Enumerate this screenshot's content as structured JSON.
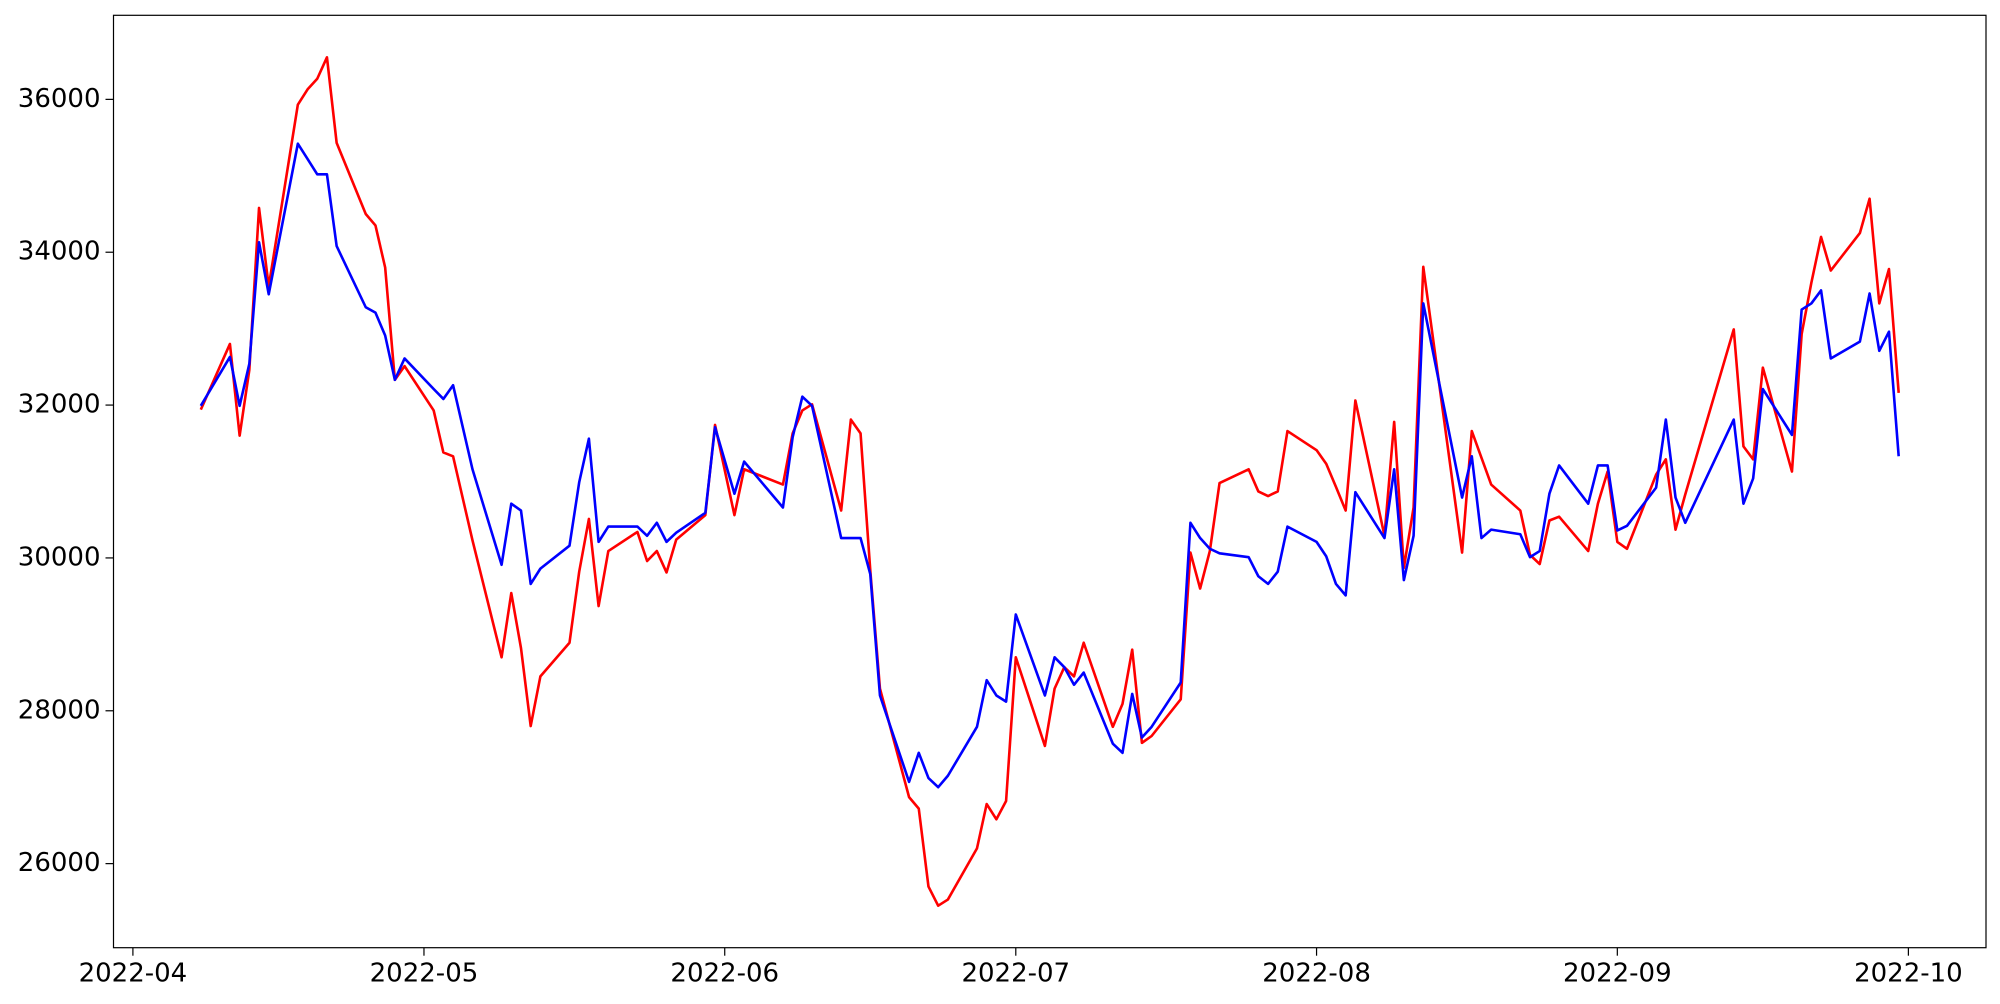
{
  "chart_data": {
    "type": "line",
    "x": [
      "2022-04-08",
      "2022-04-11",
      "2022-04-12",
      "2022-04-13",
      "2022-04-14",
      "2022-04-15",
      "2022-04-18",
      "2022-04-19",
      "2022-04-20",
      "2022-04-21",
      "2022-04-22",
      "2022-04-25",
      "2022-04-26",
      "2022-04-27",
      "2022-04-28",
      "2022-04-29",
      "2022-05-02",
      "2022-05-03",
      "2022-05-04",
      "2022-05-06",
      "2022-05-09",
      "2022-05-10",
      "2022-05-11",
      "2022-05-12",
      "2022-05-13",
      "2022-05-16",
      "2022-05-17",
      "2022-05-18",
      "2022-05-19",
      "2022-05-20",
      "2022-05-23",
      "2022-05-24",
      "2022-05-25",
      "2022-05-26",
      "2022-05-27",
      "2022-05-30",
      "2022-05-31",
      "2022-06-02",
      "2022-06-03",
      "2022-06-07",
      "2022-06-08",
      "2022-06-09",
      "2022-06-10",
      "2022-06-13",
      "2022-06-14",
      "2022-06-15",
      "2022-06-16",
      "2022-06-17",
      "2022-06-20",
      "2022-06-21",
      "2022-06-22",
      "2022-06-23",
      "2022-06-24",
      "2022-06-27",
      "2022-06-28",
      "2022-06-29",
      "2022-06-30",
      "2022-07-01",
      "2022-07-04",
      "2022-07-05",
      "2022-07-06",
      "2022-07-07",
      "2022-07-08",
      "2022-07-11",
      "2022-07-12",
      "2022-07-13",
      "2022-07-14",
      "2022-07-15",
      "2022-07-18",
      "2022-07-19",
      "2022-07-20",
      "2022-07-21",
      "2022-07-22",
      "2022-07-25",
      "2022-07-26",
      "2022-07-27",
      "2022-07-28",
      "2022-07-29",
      "2022-08-01",
      "2022-08-02",
      "2022-08-03",
      "2022-08-04",
      "2022-08-05",
      "2022-08-08",
      "2022-08-09",
      "2022-08-10",
      "2022-08-11",
      "2022-08-12",
      "2022-08-16",
      "2022-08-17",
      "2022-08-18",
      "2022-08-19",
      "2022-08-22",
      "2022-08-23",
      "2022-08-24",
      "2022-08-25",
      "2022-08-26",
      "2022-08-29",
      "2022-08-30",
      "2022-08-31",
      "2022-09-01",
      "2022-09-02",
      "2022-09-05",
      "2022-09-06",
      "2022-09-07",
      "2022-09-08",
      "2022-09-13",
      "2022-09-14",
      "2022-09-15",
      "2022-09-16",
      "2022-09-19",
      "2022-09-20",
      "2022-09-21",
      "2022-09-22",
      "2022-09-23",
      "2022-09-26",
      "2022-09-27",
      "2022-09-28",
      "2022-09-29",
      "2022-09-30"
    ],
    "series": [
      {
        "color": "#ff0000",
        "values": [
          31940,
          32800,
          31600,
          32460,
          34580,
          33550,
          35930,
          36130,
          36270,
          36550,
          35430,
          34500,
          34350,
          33800,
          32330,
          32510,
          31930,
          31380,
          31330,
          30230,
          28700,
          29540,
          28820,
          27800,
          28450,
          28890,
          29820,
          30510,
          29370,
          30090,
          30340,
          29960,
          30090,
          29810,
          30240,
          30560,
          31740,
          30560,
          31160,
          30960,
          31630,
          31930,
          32010,
          30620,
          31810,
          31630,
          29840,
          28290,
          26870,
          26720,
          25700,
          25450,
          25530,
          26200,
          26780,
          26580,
          26820,
          28700,
          27540,
          28290,
          28570,
          28450,
          28890,
          27790,
          28090,
          28800,
          27580,
          27670,
          28150,
          30070,
          29600,
          30090,
          30980,
          31160,
          30870,
          30810,
          30870,
          31660,
          31410,
          31230,
          30930,
          30620,
          32060,
          30290,
          31780,
          29870,
          30660,
          33810,
          30070,
          31660,
          31310,
          30960,
          30620,
          30040,
          29920,
          30490,
          30540,
          30090,
          30710,
          31130,
          30210,
          30120,
          31090,
          31290,
          30370,
          30830,
          32990,
          31460,
          31290,
          32490,
          31130,
          32930,
          33600,
          34200,
          33760,
          34250,
          34700,
          33330,
          33780,
          32160
        ]
      },
      {
        "color": "#0000ff",
        "values": [
          31990,
          32630,
          31990,
          32540,
          34130,
          33450,
          35420,
          35220,
          35020,
          35020,
          34080,
          33280,
          33210,
          32910,
          32330,
          32610,
          32210,
          32080,
          32260,
          31160,
          29910,
          30710,
          30620,
          29660,
          29860,
          30160,
          30990,
          31560,
          30210,
          30410,
          30410,
          30290,
          30460,
          30210,
          30330,
          30590,
          31710,
          30840,
          31260,
          30660,
          31580,
          32110,
          31990,
          30260,
          30260,
          30260,
          29790,
          28200,
          27070,
          27450,
          27120,
          27000,
          27150,
          27790,
          28400,
          28200,
          28120,
          29260,
          28200,
          28700,
          28570,
          28340,
          28500,
          27570,
          27450,
          28220,
          27650,
          27790,
          28370,
          30460,
          30260,
          30120,
          30060,
          30010,
          29760,
          29660,
          29820,
          30410,
          30210,
          30020,
          29660,
          29510,
          30860,
          30260,
          31160,
          29710,
          30290,
          33330,
          30790,
          31330,
          30260,
          30370,
          30310,
          30010,
          30090,
          30840,
          31210,
          30710,
          31210,
          31210,
          30360,
          30420,
          30920,
          31810,
          30790,
          30460,
          31810,
          30710,
          31040,
          32210,
          31610,
          33250,
          33330,
          33500,
          32610,
          32830,
          33460,
          32710,
          32960,
          31330
        ]
      }
    ],
    "xlim": [
      "2022-03-30",
      "2022-10-09"
    ],
    "xticks": [
      {
        "value": "2022-04-01",
        "label": "2022-04"
      },
      {
        "value": "2022-05-01",
        "label": "2022-05"
      },
      {
        "value": "2022-06-01",
        "label": "2022-06"
      },
      {
        "value": "2022-07-01",
        "label": "2022-07"
      },
      {
        "value": "2022-08-01",
        "label": "2022-08"
      },
      {
        "value": "2022-09-01",
        "label": "2022-09"
      },
      {
        "value": "2022-10-01",
        "label": "2022-10"
      }
    ],
    "ylim": [
      24900,
      37100
    ],
    "yticks": [
      26000,
      28000,
      30000,
      32000,
      34000,
      36000
    ],
    "grid": false
  }
}
